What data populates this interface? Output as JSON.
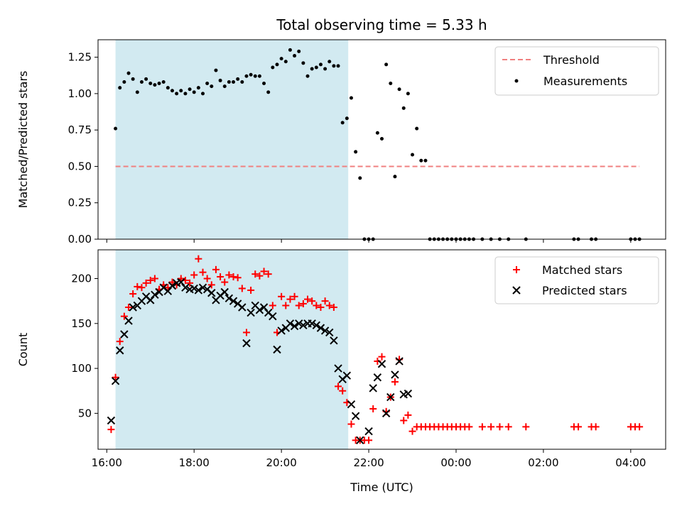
{
  "chart_data": [
    {
      "type": "scatter",
      "title": "Total observing time = 5.33 h",
      "xlabel": "",
      "ylabel": "Matched/Predicted stars",
      "xlim_hours": [
        15.8,
        28.8
      ],
      "ylim": [
        0,
        1.37
      ],
      "xticks": [
        "16:00",
        "18:00",
        "20:00",
        "22:00",
        "00:00",
        "02:00",
        "04:00"
      ],
      "xtick_hours": [
        16,
        18,
        20,
        22,
        24,
        26,
        28
      ],
      "yticks": [
        "0.00",
        "0.25",
        "0.50",
        "0.75",
        "1.00",
        "1.25"
      ],
      "ytick_values": [
        0,
        0.25,
        0.5,
        0.75,
        1.0,
        1.25
      ],
      "shaded_interval_hours": [
        16.2,
        21.53
      ],
      "legend": {
        "placement": "top-right",
        "entries": [
          "Threshold",
          "Measurements"
        ]
      },
      "threshold": {
        "name": "Threshold",
        "value": 0.5,
        "x_hours": [
          16.2,
          28.2
        ],
        "color": "#f08080"
      },
      "series": [
        {
          "name": "Measurements",
          "color": "#000000",
          "x_hours": [
            16.2,
            16.3,
            16.4,
            16.5,
            16.6,
            16.7,
            16.8,
            16.9,
            17.0,
            17.1,
            17.2,
            17.3,
            17.4,
            17.5,
            17.6,
            17.7,
            17.8,
            17.9,
            18.0,
            18.1,
            18.2,
            18.3,
            18.4,
            18.5,
            18.6,
            18.7,
            18.8,
            18.9,
            19.0,
            19.1,
            19.2,
            19.3,
            19.4,
            19.5,
            19.6,
            19.7,
            19.8,
            19.9,
            20.0,
            20.1,
            20.2,
            20.3,
            20.4,
            20.5,
            20.6,
            20.7,
            20.8,
            20.9,
            21.0,
            21.1,
            21.2,
            21.3,
            21.4,
            21.5,
            21.6,
            21.7,
            21.8,
            21.9,
            22.0,
            22.1,
            22.2,
            22.3,
            22.4,
            22.5,
            22.6,
            22.7,
            22.8,
            22.9,
            23.0,
            23.1,
            23.2,
            23.3,
            23.4,
            23.5,
            23.6,
            23.7,
            23.8,
            23.9,
            24.0,
            24.1,
            24.2,
            24.3,
            24.4,
            24.6,
            24.8,
            25.0,
            25.2,
            25.6,
            26.7,
            26.8,
            27.1,
            27.2,
            28.0,
            28.1,
            28.2
          ],
          "y": [
            0.76,
            1.04,
            1.08,
            1.14,
            1.1,
            1.01,
            1.08,
            1.1,
            1.07,
            1.06,
            1.07,
            1.08,
            1.04,
            1.02,
            1.0,
            1.02,
            1.0,
            1.03,
            1.01,
            1.04,
            1.0,
            1.07,
            1.05,
            1.16,
            1.09,
            1.05,
            1.08,
            1.08,
            1.1,
            1.08,
            1.12,
            1.13,
            1.12,
            1.12,
            1.07,
            1.01,
            1.18,
            1.2,
            1.24,
            1.22,
            1.3,
            1.26,
            1.29,
            1.21,
            1.12,
            1.17,
            1.18,
            1.2,
            1.17,
            1.22,
            1.19,
            1.19,
            0.8,
            0.83,
            0.97,
            0.6,
            0.42,
            0.0,
            0.0,
            0.0,
            0.73,
            0.69,
            1.2,
            1.07,
            0.43,
            1.03,
            0.9,
            1.0,
            0.58,
            0.76,
            0.54,
            0.54,
            0.0,
            0.0,
            0.0,
            0.0,
            0.0,
            0.0,
            0.0,
            0.0,
            0.0,
            0.0,
            0.0,
            0.0,
            0.0,
            0.0,
            0.0,
            0.0,
            0.0,
            0.0,
            0.0,
            0.0,
            0.0,
            0.0,
            0.0
          ]
        }
      ]
    },
    {
      "type": "scatter",
      "title": "",
      "xlabel": "Time (UTC)",
      "ylabel": "Count",
      "xlim_hours": [
        15.8,
        28.8
      ],
      "ylim": [
        10,
        232
      ],
      "xticks": [
        "16:00",
        "18:00",
        "20:00",
        "22:00",
        "00:00",
        "02:00",
        "04:00"
      ],
      "xtick_hours": [
        16,
        18,
        20,
        22,
        24,
        26,
        28
      ],
      "yticks": [
        "50",
        "100",
        "150",
        "200"
      ],
      "ytick_values": [
        50,
        100,
        150,
        200
      ],
      "shaded_interval_hours": [
        16.2,
        21.53
      ],
      "legend": {
        "placement": "top-right",
        "entries": [
          "Matched stars",
          "Predicted stars"
        ]
      },
      "series": [
        {
          "name": "Matched stars",
          "marker": "plus",
          "color": "#ff0000",
          "x_hours": [
            16.1,
            16.2,
            16.3,
            16.4,
            16.5,
            16.6,
            16.7,
            16.8,
            16.9,
            17.0,
            17.1,
            17.2,
            17.3,
            17.4,
            17.5,
            17.6,
            17.7,
            17.8,
            17.9,
            18.0,
            18.1,
            18.2,
            18.3,
            18.4,
            18.5,
            18.6,
            18.7,
            18.8,
            18.9,
            19.0,
            19.1,
            19.2,
            19.3,
            19.4,
            19.5,
            19.6,
            19.7,
            19.8,
            19.9,
            20.0,
            20.1,
            20.2,
            20.3,
            20.4,
            20.5,
            20.6,
            20.7,
            20.8,
            20.9,
            21.0,
            21.1,
            21.2,
            21.3,
            21.4,
            21.5,
            21.6,
            21.7,
            21.8,
            21.9,
            22.0,
            22.1,
            22.2,
            22.3,
            22.4,
            22.5,
            22.6,
            22.7,
            22.8,
            22.9,
            23.0,
            23.1,
            23.2,
            23.3,
            23.4,
            23.5,
            23.6,
            23.7,
            23.8,
            23.9,
            24.0,
            24.1,
            24.2,
            24.3,
            24.6,
            24.8,
            25.0,
            25.2,
            25.6,
            26.7,
            26.8,
            27.1,
            27.2,
            28.0,
            28.1,
            28.2
          ],
          "y": [
            32,
            90,
            130,
            158,
            168,
            183,
            191,
            190,
            195,
            198,
            200,
            188,
            193,
            190,
            196,
            193,
            200,
            198,
            195,
            204,
            222,
            207,
            200,
            193,
            210,
            202,
            196,
            204,
            202,
            201,
            189,
            140,
            187,
            205,
            203,
            208,
            205,
            170,
            140,
            180,
            170,
            177,
            180,
            170,
            172,
            177,
            175,
            170,
            168,
            175,
            170,
            168,
            80,
            75,
            62,
            38,
            20,
            20,
            20,
            20,
            55,
            108,
            113,
            52,
            68,
            85,
            110,
            42,
            48,
            30,
            35,
            35,
            35,
            35,
            35,
            35,
            35,
            35,
            35,
            35,
            35,
            35,
            35,
            35,
            35,
            35,
            35,
            35,
            35,
            35,
            35,
            35,
            35,
            35,
            35
          ]
        },
        {
          "name": "Predicted stars",
          "marker": "x",
          "color": "#000000",
          "x_hours": [
            16.1,
            16.2,
            16.3,
            16.4,
            16.5,
            16.6,
            16.7,
            16.8,
            16.9,
            17.0,
            17.1,
            17.2,
            17.3,
            17.4,
            17.5,
            17.6,
            17.7,
            17.8,
            17.9,
            18.0,
            18.1,
            18.2,
            18.3,
            18.4,
            18.5,
            18.6,
            18.7,
            18.8,
            18.9,
            19.0,
            19.1,
            19.2,
            19.3,
            19.4,
            19.5,
            19.6,
            19.7,
            19.8,
            19.9,
            20.0,
            20.1,
            20.2,
            20.3,
            20.4,
            20.5,
            20.6,
            20.7,
            20.8,
            20.9,
            21.0,
            21.1,
            21.2,
            21.3,
            21.4,
            21.5,
            21.6,
            21.7,
            21.8,
            22.0,
            22.1,
            22.2,
            22.3,
            22.4,
            22.5,
            22.6,
            22.7,
            22.8,
            22.9
          ],
          "y": [
            42,
            86,
            120,
            138,
            153,
            168,
            170,
            175,
            180,
            176,
            182,
            185,
            190,
            186,
            192,
            195,
            196,
            190,
            188,
            189,
            187,
            190,
            188,
            184,
            176,
            181,
            185,
            178,
            175,
            172,
            168,
            128,
            162,
            170,
            165,
            168,
            162,
            158,
            121,
            142,
            145,
            150,
            147,
            150,
            148,
            150,
            150,
            148,
            145,
            142,
            140,
            131,
            100,
            88,
            92,
            60,
            47,
            20,
            30,
            78,
            90,
            105,
            50,
            68,
            93,
            108,
            71,
            72
          ],
          "note_extra": []
        }
      ]
    }
  ]
}
